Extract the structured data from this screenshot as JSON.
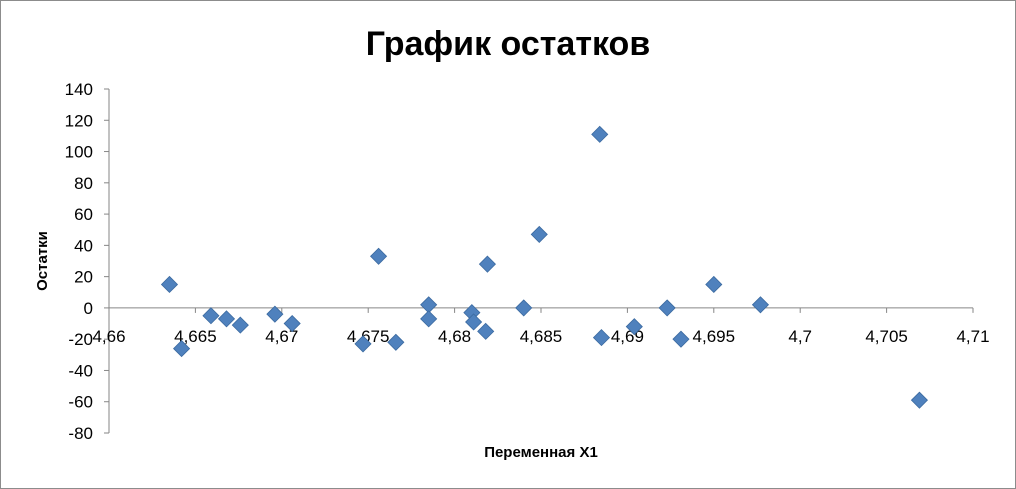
{
  "chart_data": {
    "type": "scatter",
    "title": "График остатков",
    "xlabel": "Переменная X1",
    "ylabel": "Остатки",
    "xlim": [
      4.66,
      4.71
    ],
    "ylim": [
      -80,
      140
    ],
    "x_ticks": [
      "4,66",
      "4,665",
      "4,67",
      "4,675",
      "4,68",
      "4,685",
      "4,69",
      "4,695",
      "4,7",
      "4,705",
      "4,71"
    ],
    "y_ticks": [
      "140",
      "120",
      "100",
      "80",
      "60",
      "40",
      "20",
      "0",
      "-20",
      "-40",
      "-60",
      "-80"
    ],
    "x_tick_values": [
      4.66,
      4.665,
      4.67,
      4.675,
      4.68,
      4.685,
      4.69,
      4.695,
      4.7,
      4.705,
      4.71
    ],
    "y_tick_values": [
      140,
      120,
      100,
      80,
      60,
      40,
      20,
      0,
      -20,
      -40,
      -60,
      -80
    ],
    "grid": false,
    "marker_color": "#4F81BD",
    "marker_shape": "diamond",
    "points": [
      {
        "x": 4.6635,
        "y": 15
      },
      {
        "x": 4.6642,
        "y": -26
      },
      {
        "x": 4.6659,
        "y": -5
      },
      {
        "x": 4.6668,
        "y": -7
      },
      {
        "x": 4.6676,
        "y": -11
      },
      {
        "x": 4.6696,
        "y": -4
      },
      {
        "x": 4.6706,
        "y": -10
      },
      {
        "x": 4.6747,
        "y": -23
      },
      {
        "x": 4.6756,
        "y": 33
      },
      {
        "x": 4.6766,
        "y": -22
      },
      {
        "x": 4.6785,
        "y": 2
      },
      {
        "x": 4.6785,
        "y": -7
      },
      {
        "x": 4.681,
        "y": -3
      },
      {
        "x": 4.6811,
        "y": -9
      },
      {
        "x": 4.6818,
        "y": -15
      },
      {
        "x": 4.6819,
        "y": 28
      },
      {
        "x": 4.684,
        "y": 0
      },
      {
        "x": 4.6849,
        "y": 47
      },
      {
        "x": 4.6884,
        "y": 111
      },
      {
        "x": 4.6885,
        "y": -19
      },
      {
        "x": 4.6904,
        "y": -12
      },
      {
        "x": 4.6923,
        "y": 0
      },
      {
        "x": 4.6931,
        "y": -20
      },
      {
        "x": 4.695,
        "y": 15
      },
      {
        "x": 4.6977,
        "y": 2
      },
      {
        "x": 4.7069,
        "y": -59
      }
    ]
  }
}
